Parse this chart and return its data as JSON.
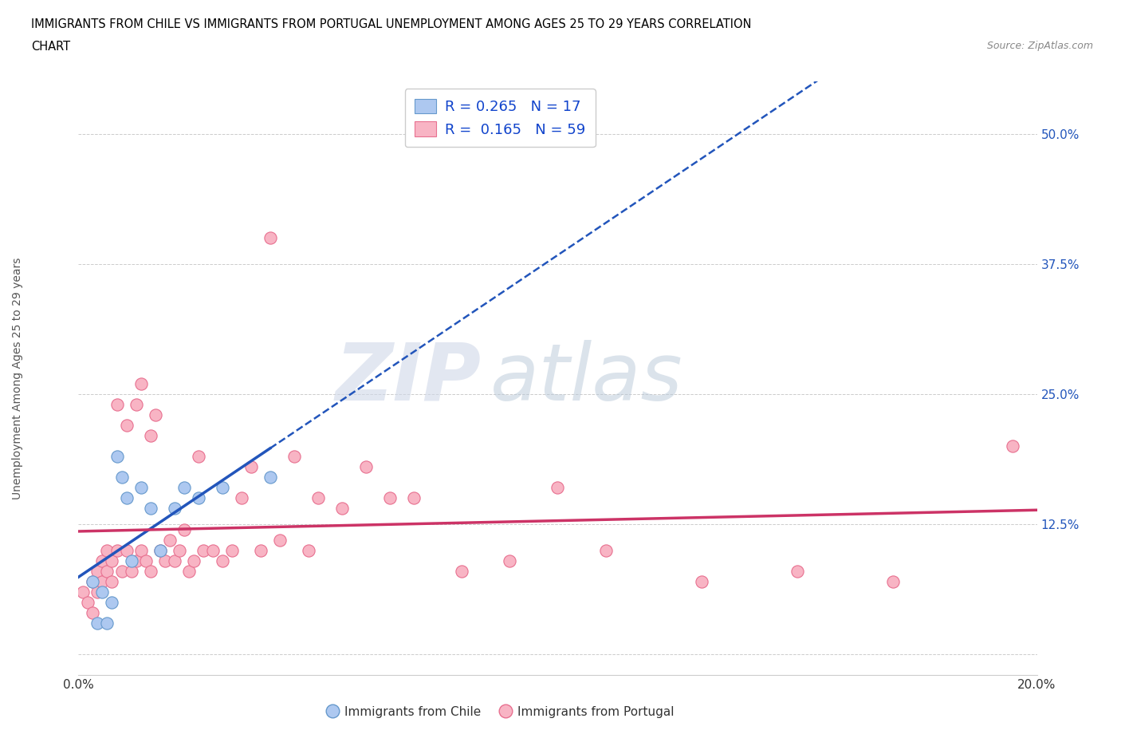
{
  "title_line1": "IMMIGRANTS FROM CHILE VS IMMIGRANTS FROM PORTUGAL UNEMPLOYMENT AMONG AGES 25 TO 29 YEARS CORRELATION",
  "title_line2": "CHART",
  "source": "Source: ZipAtlas.com",
  "ylabel": "Unemployment Among Ages 25 to 29 years",
  "xlim": [
    0.0,
    0.2
  ],
  "ylim": [
    -0.02,
    0.55
  ],
  "xticks": [
    0.0,
    0.05,
    0.1,
    0.15,
    0.2
  ],
  "yticks": [
    0.0,
    0.125,
    0.25,
    0.375,
    0.5
  ],
  "yticklabels": [
    "",
    "12.5%",
    "25.0%",
    "37.5%",
    "50.0%"
  ],
  "chile_color": "#adc8f0",
  "chile_edge": "#6699cc",
  "portugal_color": "#f8b4c4",
  "portugal_edge": "#e87090",
  "chile_R": 0.265,
  "chile_N": 17,
  "portugal_R": 0.165,
  "portugal_N": 59,
  "legend_R_color": "#1144cc",
  "trend_chile_color": "#2255bb",
  "trend_portugal_color": "#cc3366",
  "background_color": "#ffffff",
  "grid_color": "#cccccc",
  "chile_scatter_x": [
    0.003,
    0.004,
    0.005,
    0.006,
    0.007,
    0.008,
    0.009,
    0.01,
    0.011,
    0.013,
    0.015,
    0.017,
    0.02,
    0.022,
    0.025,
    0.03,
    0.04
  ],
  "chile_scatter_y": [
    0.07,
    0.03,
    0.06,
    0.03,
    0.05,
    0.19,
    0.17,
    0.15,
    0.09,
    0.16,
    0.14,
    0.1,
    0.14,
    0.16,
    0.15,
    0.16,
    0.17
  ],
  "portugal_scatter_x": [
    0.001,
    0.002,
    0.003,
    0.003,
    0.004,
    0.004,
    0.005,
    0.005,
    0.006,
    0.006,
    0.007,
    0.007,
    0.008,
    0.008,
    0.009,
    0.01,
    0.01,
    0.011,
    0.012,
    0.012,
    0.013,
    0.013,
    0.014,
    0.015,
    0.015,
    0.016,
    0.017,
    0.018,
    0.019,
    0.02,
    0.021,
    0.022,
    0.023,
    0.024,
    0.025,
    0.026,
    0.028,
    0.03,
    0.032,
    0.034,
    0.036,
    0.038,
    0.04,
    0.042,
    0.045,
    0.048,
    0.05,
    0.055,
    0.06,
    0.065,
    0.07,
    0.08,
    0.09,
    0.1,
    0.11,
    0.13,
    0.15,
    0.17,
    0.195
  ],
  "portugal_scatter_y": [
    0.06,
    0.05,
    0.07,
    0.04,
    0.08,
    0.06,
    0.09,
    0.07,
    0.1,
    0.08,
    0.09,
    0.07,
    0.1,
    0.24,
    0.08,
    0.22,
    0.1,
    0.08,
    0.24,
    0.09,
    0.26,
    0.1,
    0.09,
    0.21,
    0.08,
    0.23,
    0.1,
    0.09,
    0.11,
    0.09,
    0.1,
    0.12,
    0.08,
    0.09,
    0.19,
    0.1,
    0.1,
    0.09,
    0.1,
    0.15,
    0.18,
    0.1,
    0.4,
    0.11,
    0.19,
    0.1,
    0.15,
    0.14,
    0.18,
    0.15,
    0.15,
    0.08,
    0.09,
    0.16,
    0.1,
    0.07,
    0.08,
    0.07,
    0.2
  ]
}
